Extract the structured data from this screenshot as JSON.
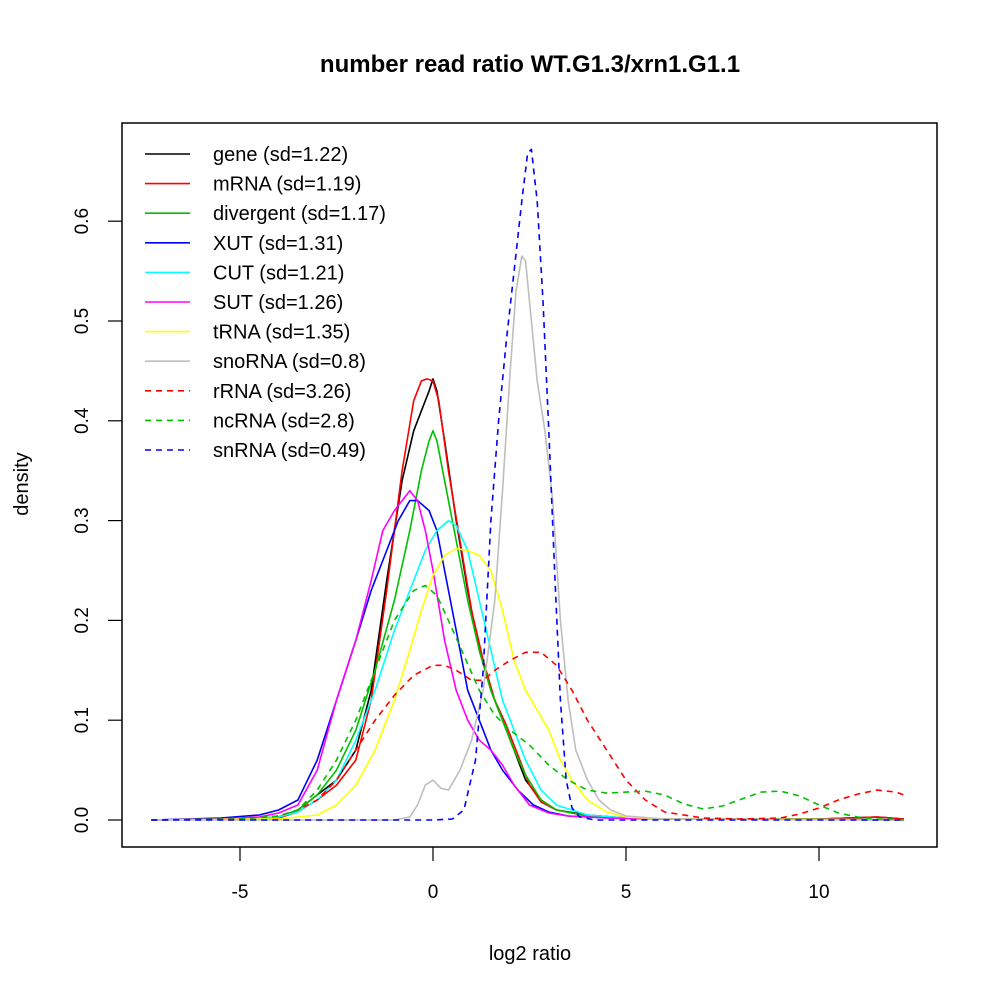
{
  "chart_data": {
    "type": "line",
    "title": "number read ratio WT.G1.3/xrn1.G1.1",
    "xlabel": "log2 ratio",
    "ylabel": "density",
    "xlim": [
      -8,
      13
    ],
    "ylim": [
      -0.027,
      0.7
    ],
    "xticks": [
      -5,
      0,
      5,
      10
    ],
    "xtick_labels": [
      "-5",
      "0",
      "5",
      "10"
    ],
    "yticks": [
      0.0,
      0.1,
      0.2,
      0.3,
      0.4,
      0.5,
      0.6
    ],
    "ytick_labels": [
      "0.0",
      "0.1",
      "0.2",
      "0.3",
      "0.4",
      "0.5",
      "0.6"
    ],
    "grid": false,
    "legend_position": "top-left",
    "series": [
      {
        "name": "gene (sd=1.22)",
        "color": "#000000",
        "dash": "solid",
        "x": [
          -7.3,
          -5,
          -4,
          -3.5,
          -3,
          -2.5,
          -2,
          -1.6,
          -1.2,
          -0.8,
          -0.5,
          -0.3,
          -0.1,
          0,
          0.1,
          0.3,
          0.6,
          0.9,
          1.2,
          1.5,
          1.8,
          2.1,
          2.4,
          2.8,
          3.2,
          4,
          5,
          6,
          8,
          10,
          11.5,
          12.2
        ],
        "y": [
          0,
          0.001,
          0.003,
          0.01,
          0.025,
          0.04,
          0.07,
          0.13,
          0.24,
          0.34,
          0.39,
          0.41,
          0.43,
          0.442,
          0.43,
          0.38,
          0.3,
          0.23,
          0.17,
          0.13,
          0.1,
          0.07,
          0.04,
          0.02,
          0.01,
          0.005,
          0.002,
          0.001,
          0.001,
          0.001,
          0.003,
          0.001
        ]
      },
      {
        "name": "mRNA (sd=1.19)",
        "color": "#ff0000",
        "dash": "solid",
        "x": [
          -7.3,
          -5,
          -4,
          -3.5,
          -3,
          -2.5,
          -2,
          -1.6,
          -1.2,
          -0.8,
          -0.5,
          -0.3,
          -0.15,
          0,
          0.15,
          0.4,
          0.7,
          1,
          1.3,
          1.6,
          1.9,
          2.2,
          2.5,
          2.8,
          3.2,
          4,
          5,
          6,
          8,
          10,
          11.5,
          12.2
        ],
        "y": [
          0,
          0.001,
          0.002,
          0.008,
          0.02,
          0.035,
          0.06,
          0.12,
          0.23,
          0.35,
          0.42,
          0.44,
          0.442,
          0.44,
          0.42,
          0.35,
          0.28,
          0.21,
          0.16,
          0.12,
          0.095,
          0.065,
          0.035,
          0.018,
          0.01,
          0.004,
          0.002,
          0.001,
          0.001,
          0.001,
          0.003,
          0.001
        ]
      },
      {
        "name": "divergent (sd=1.17)",
        "color": "#00c000",
        "dash": "solid",
        "x": [
          -7.3,
          -5,
          -4,
          -3.5,
          -3,
          -2.5,
          -2,
          -1.5,
          -1,
          -0.6,
          -0.3,
          -0.1,
          0,
          0.1,
          0.3,
          0.6,
          0.9,
          1.2,
          1.5,
          1.8,
          2.1,
          2.4,
          2.8,
          3.2,
          4,
          5,
          6,
          8,
          10,
          12.2
        ],
        "y": [
          0,
          0.001,
          0.003,
          0.01,
          0.025,
          0.05,
          0.09,
          0.15,
          0.22,
          0.29,
          0.35,
          0.38,
          0.39,
          0.38,
          0.34,
          0.28,
          0.22,
          0.17,
          0.13,
          0.1,
          0.07,
          0.045,
          0.02,
          0.01,
          0.004,
          0.002,
          0.001,
          0.001,
          0.001,
          0
        ]
      },
      {
        "name": "XUT (sd=1.31)",
        "color": "#0000ff",
        "dash": "solid",
        "x": [
          -7.3,
          -5.5,
          -4.5,
          -4,
          -3.5,
          -3,
          -2.5,
          -2,
          -1.6,
          -1.2,
          -0.9,
          -0.6,
          -0.4,
          -0.1,
          0.1,
          0.3,
          0.6,
          0.9,
          1.2,
          1.5,
          1.8,
          2.2,
          2.6,
          3,
          3.5,
          4.5,
          6,
          8,
          12.2
        ],
        "y": [
          0,
          0.002,
          0.005,
          0.01,
          0.02,
          0.06,
          0.12,
          0.18,
          0.23,
          0.27,
          0.3,
          0.32,
          0.32,
          0.31,
          0.29,
          0.25,
          0.19,
          0.13,
          0.1,
          0.07,
          0.05,
          0.03,
          0.015,
          0.008,
          0.004,
          0.002,
          0.001,
          0.001,
          0
        ]
      },
      {
        "name": "CUT (sd=1.21)",
        "color": "#00ffff",
        "dash": "solid",
        "x": [
          -7.3,
          -5,
          -4,
          -3.5,
          -3,
          -2.5,
          -2,
          -1.5,
          -1,
          -0.5,
          -0.2,
          0.1,
          0.4,
          0.6,
          0.9,
          1.2,
          1.5,
          1.8,
          2.1,
          2.4,
          2.8,
          3.2,
          4,
          5,
          6,
          8,
          12.2
        ],
        "y": [
          0,
          0.001,
          0.003,
          0.008,
          0.02,
          0.04,
          0.08,
          0.13,
          0.19,
          0.24,
          0.27,
          0.29,
          0.3,
          0.295,
          0.27,
          0.22,
          0.17,
          0.12,
          0.09,
          0.06,
          0.03,
          0.015,
          0.005,
          0.002,
          0.001,
          0.001,
          0
        ]
      },
      {
        "name": "SUT (sd=1.26)",
        "color": "#ff00ff",
        "dash": "solid",
        "x": [
          -7.3,
          -5.5,
          -4.5,
          -4,
          -3.5,
          -3,
          -2.5,
          -2,
          -1.6,
          -1.3,
          -1,
          -0.8,
          -0.6,
          -0.4,
          -0.2,
          0,
          0.3,
          0.6,
          0.9,
          1.2,
          1.5,
          1.8,
          2.1,
          2.5,
          3,
          3.5,
          4.5,
          6,
          8,
          12.2
        ],
        "y": [
          0,
          0.001,
          0.003,
          0.007,
          0.015,
          0.05,
          0.12,
          0.18,
          0.24,
          0.29,
          0.31,
          0.32,
          0.33,
          0.32,
          0.29,
          0.25,
          0.18,
          0.13,
          0.1,
          0.08,
          0.07,
          0.055,
          0.035,
          0.015,
          0.007,
          0.004,
          0.002,
          0.001,
          0.001,
          0
        ]
      },
      {
        "name": "tRNA (sd=1.35)",
        "color": "#ffff00",
        "dash": "solid",
        "x": [
          -7.3,
          -5,
          -4,
          -3,
          -2.5,
          -2,
          -1.5,
          -1,
          -0.6,
          -0.3,
          0,
          0.3,
          0.6,
          0.9,
          1.2,
          1.5,
          1.8,
          2.1,
          2.4,
          2.7,
          3,
          3.3,
          3.6,
          4,
          4.5,
          5,
          6,
          8,
          12.2
        ],
        "y": [
          0,
          0.001,
          0.001,
          0.005,
          0.015,
          0.035,
          0.07,
          0.12,
          0.17,
          0.21,
          0.245,
          0.265,
          0.272,
          0.27,
          0.265,
          0.25,
          0.21,
          0.16,
          0.13,
          0.11,
          0.09,
          0.06,
          0.04,
          0.02,
          0.008,
          0.003,
          0.001,
          0.001,
          0
        ]
      },
      {
        "name": "snoRNA (sd=0.8)",
        "color": "#bebebe",
        "dash": "solid",
        "x": [
          -7.3,
          -1,
          -0.6,
          -0.4,
          -0.2,
          0,
          0.2,
          0.4,
          0.7,
          1,
          1.3,
          1.6,
          1.8,
          2,
          2.15,
          2.3,
          2.4,
          2.55,
          2.7,
          2.9,
          3.1,
          3.3,
          3.5,
          3.7,
          4,
          4.3,
          4.6,
          5,
          6,
          12.2
        ],
        "y": [
          0,
          0,
          0.003,
          0.015,
          0.035,
          0.04,
          0.032,
          0.03,
          0.05,
          0.08,
          0.13,
          0.22,
          0.33,
          0.45,
          0.53,
          0.565,
          0.56,
          0.5,
          0.44,
          0.39,
          0.32,
          0.2,
          0.12,
          0.07,
          0.04,
          0.02,
          0.01,
          0.004,
          0.001,
          0
        ]
      },
      {
        "name": "rRNA (sd=3.26)",
        "color": "#ff0000",
        "dash": "dashed",
        "x": [
          -7.3,
          -5,
          -4,
          -3.5,
          -3,
          -2.5,
          -2,
          -1.5,
          -1,
          -0.5,
          0,
          0.3,
          0.6,
          1,
          1.3,
          1.6,
          2,
          2.4,
          2.8,
          3.2,
          3.6,
          4,
          4.5,
          5,
          5.5,
          6,
          7,
          8,
          9,
          9.5,
          10,
          10.5,
          11,
          11.5,
          12,
          12.2
        ],
        "y": [
          0,
          0.001,
          0.004,
          0.01,
          0.02,
          0.04,
          0.07,
          0.1,
          0.125,
          0.145,
          0.155,
          0.155,
          0.15,
          0.14,
          0.14,
          0.15,
          0.16,
          0.168,
          0.168,
          0.155,
          0.13,
          0.1,
          0.07,
          0.04,
          0.02,
          0.008,
          0.002,
          0.001,
          0.002,
          0.006,
          0.012,
          0.02,
          0.026,
          0.03,
          0.028,
          0.025
        ]
      },
      {
        "name": "ncRNA (sd=2.8)",
        "color": "#00c000",
        "dash": "dashed",
        "x": [
          -7.3,
          -5,
          -4,
          -3.5,
          -3,
          -2.5,
          -2,
          -1.5,
          -1,
          -0.5,
          -0.2,
          0.1,
          0.4,
          0.8,
          1.2,
          1.6,
          2,
          2.5,
          3,
          3.5,
          4,
          4.5,
          5,
          5.5,
          6,
          6.5,
          7,
          7.5,
          8,
          8.5,
          9,
          9.5,
          10,
          10.5,
          11,
          11.5,
          12,
          12.2
        ],
        "y": [
          0,
          0.001,
          0.004,
          0.01,
          0.03,
          0.06,
          0.1,
          0.15,
          0.2,
          0.23,
          0.235,
          0.225,
          0.2,
          0.165,
          0.13,
          0.105,
          0.09,
          0.075,
          0.055,
          0.04,
          0.03,
          0.027,
          0.028,
          0.029,
          0.025,
          0.016,
          0.011,
          0.014,
          0.021,
          0.028,
          0.029,
          0.024,
          0.015,
          0.007,
          0.003,
          0.001,
          0.001,
          0
        ]
      },
      {
        "name": "snRNA (sd=0.49)",
        "color": "#0000ff",
        "dash": "dashed",
        "x": [
          -7.3,
          0,
          0.5,
          0.8,
          1.1,
          1.3,
          1.5,
          1.7,
          1.9,
          2.1,
          2.3,
          2.45,
          2.55,
          2.7,
          2.85,
          3,
          3.15,
          3.3,
          3.45,
          3.6,
          3.8,
          4.2,
          12.2
        ],
        "y": [
          0,
          0,
          0.001,
          0.01,
          0.06,
          0.15,
          0.3,
          0.4,
          0.48,
          0.55,
          0.62,
          0.668,
          0.672,
          0.62,
          0.52,
          0.39,
          0.25,
          0.12,
          0.04,
          0.012,
          0.003,
          0,
          0
        ]
      }
    ]
  }
}
